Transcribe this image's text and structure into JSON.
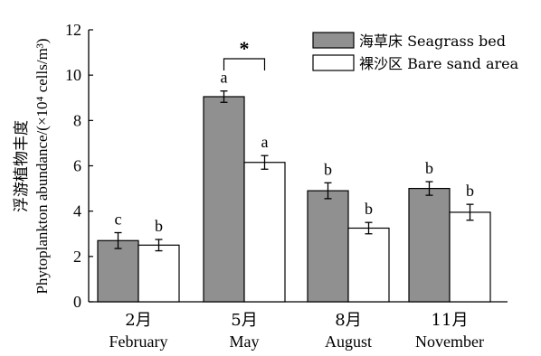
{
  "chart_data": {
    "type": "bar",
    "categories": [
      {
        "month": "2月",
        "name": "February"
      },
      {
        "month": "5月",
        "name": "May"
      },
      {
        "month": "8月",
        "name": "August"
      },
      {
        "month": "11月",
        "name": "November"
      }
    ],
    "series": [
      {
        "name": "海草床 Seagrass bed",
        "color": "#909090",
        "values": [
          2.7,
          9.05,
          4.9,
          5.0
        ],
        "errors": [
          0.35,
          0.25,
          0.35,
          0.3
        ],
        "labels": [
          "c",
          "a",
          "b",
          "b"
        ]
      },
      {
        "name": "裸沙区 Bare sand area",
        "color": "#ffffff",
        "values": [
          2.5,
          6.15,
          3.25,
          3.95
        ],
        "errors": [
          0.25,
          0.3,
          0.25,
          0.35
        ],
        "labels": [
          "b",
          "a",
          "b",
          "b"
        ]
      }
    ],
    "ylabel_cn": "浮游植物丰度",
    "ylabel_en": "Phytoplankton abundance/(×10⁴ cells/m³)",
    "ylim": [
      0,
      12
    ],
    "yticks": [
      0,
      2,
      4,
      6,
      8,
      10,
      12
    ],
    "significance": {
      "category_index": 1,
      "symbol": "*"
    },
    "legend_position": "top-right",
    "grid": false
  }
}
